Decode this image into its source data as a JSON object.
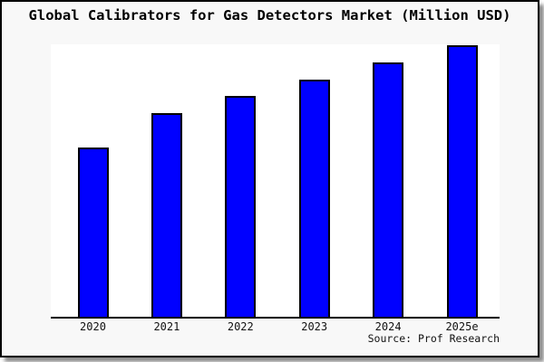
{
  "window": {
    "background": "#f8f8f8",
    "border_color": "#000000",
    "plot_background": "#ffffff"
  },
  "title": "Global Calibrators for Gas Detectors Market (Million USD)",
  "source_label": "Source: Prof Research",
  "chart_data": {
    "type": "bar",
    "title": "Global Calibrators for Gas Detectors Market (Million USD)",
    "categories": [
      "2020",
      "2021",
      "2022",
      "2023",
      "2024",
      "2025e"
    ],
    "values": [
      62.5,
      75.0,
      81.3,
      87.5,
      93.8,
      100.0
    ],
    "value_scale_note": "y-axis has no tick labels or gridlines; values are relative bar heights normalized to 2025e = 100",
    "xlabel": "",
    "ylabel": "",
    "ylim": [
      0,
      100
    ],
    "grid": false,
    "legend": false,
    "y_axis_labeled": false,
    "bar_color": "#0000ff",
    "bar_border_color": "#000000",
    "annotation": "Source: Prof Research"
  }
}
